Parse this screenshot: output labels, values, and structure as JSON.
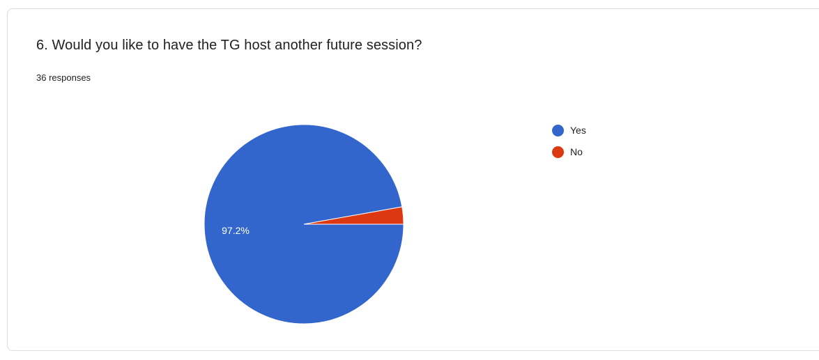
{
  "question": {
    "title": "6. Would you like to have the TG host another future session?",
    "responses": "36 responses"
  },
  "chart_data": {
    "type": "pie",
    "categories": [
      "Yes",
      "No"
    ],
    "values": [
      97.2,
      2.8
    ],
    "counts": [
      35,
      1
    ],
    "slice_labels": [
      "97.2%",
      ""
    ],
    "colors": [
      "#3366cc",
      "#dc3912"
    ],
    "legend": {
      "position": "top-right",
      "items": [
        {
          "label": "Yes",
          "color": "#3366cc"
        },
        {
          "label": "No",
          "color": "#dc3912"
        }
      ]
    }
  }
}
